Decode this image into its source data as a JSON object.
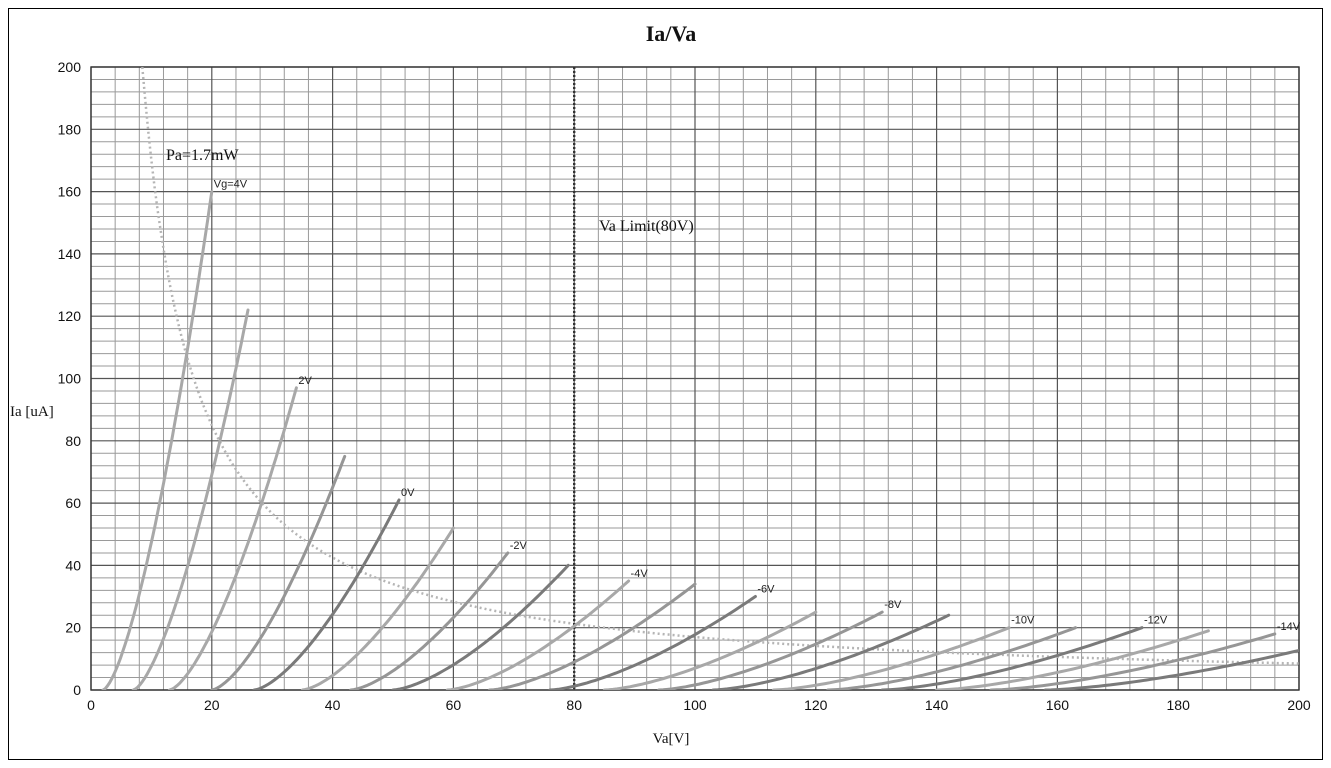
{
  "chart_data": {
    "type": "line",
    "title": "Ia/Va",
    "xlabel": "Va[V]",
    "ylabel": "Ia [uA]",
    "xlim": [
      0,
      200
    ],
    "ylim": [
      0,
      200
    ],
    "x_ticks": [
      "0",
      "20",
      "40",
      "60",
      "80",
      "100",
      "120",
      "140",
      "160",
      "180",
      "200"
    ],
    "y_ticks": [
      "0",
      "20",
      "40",
      "60",
      "80",
      "100",
      "120",
      "140",
      "160",
      "180",
      "200"
    ],
    "grid": true,
    "annotations": {
      "power_limit": "Pa=1.7mW",
      "voltage_limit": "Va Limit(80V)"
    },
    "power_limit_curve": {
      "pa_mw": 1.7,
      "x_range": [
        8.5,
        200
      ]
    },
    "voltage_limit_line": {
      "x": 80
    },
    "series": [
      {
        "label": "Vg=4V",
        "start": 2,
        "end": [
          20,
          160
        ],
        "color": "#a8a8a8"
      },
      {
        "label": "",
        "start": 7,
        "end": [
          26,
          122
        ],
        "color": "#a8a8a8"
      },
      {
        "label": "2V",
        "start": 13,
        "end": [
          34,
          97
        ],
        "color": "#a8a8a8"
      },
      {
        "label": "",
        "start": 20,
        "end": [
          42,
          75
        ],
        "color": "#969696"
      },
      {
        "label": "0V",
        "start": 27,
        "end": [
          51,
          61
        ],
        "color": "#7a7a7a"
      },
      {
        "label": "",
        "start": 35,
        "end": [
          60,
          52
        ],
        "color": "#a8a8a8"
      },
      {
        "label": "-2V",
        "start": 43,
        "end": [
          69,
          44
        ],
        "color": "#969696"
      },
      {
        "label": "",
        "start": 50,
        "end": [
          79,
          40
        ],
        "color": "#7a7a7a"
      },
      {
        "label": "-4V",
        "start": 59,
        "end": [
          89,
          35
        ],
        "color": "#a8a8a8"
      },
      {
        "label": "",
        "start": 66,
        "end": [
          100,
          34
        ],
        "color": "#969696"
      },
      {
        "label": "-6V",
        "start": 76,
        "end": [
          110,
          30
        ],
        "color": "#7a7a7a"
      },
      {
        "label": "",
        "start": 85,
        "end": [
          120,
          25
        ],
        "color": "#a8a8a8"
      },
      {
        "label": "-8V",
        "start": 94,
        "end": [
          131,
          25
        ],
        "color": "#969696"
      },
      {
        "label": "",
        "start": 103,
        "end": [
          142,
          24
        ],
        "color": "#7a7a7a"
      },
      {
        "label": "-10V",
        "start": 113,
        "end": [
          152,
          20
        ],
        "color": "#a8a8a8"
      },
      {
        "label": "",
        "start": 122,
        "end": [
          163,
          20
        ],
        "color": "#969696"
      },
      {
        "label": "-12V",
        "start": 131,
        "end": [
          174,
          20
        ],
        "color": "#7a7a7a"
      },
      {
        "label": "",
        "start": 140,
        "end": [
          185,
          19
        ],
        "color": "#a8a8a8"
      },
      {
        "label": "-14V",
        "start": 149,
        "end": [
          196,
          18
        ],
        "color": "#969696"
      },
      {
        "label": "",
        "start": 158,
        "end": [
          207,
          16
        ],
        "color": "#7a7a7a"
      }
    ]
  }
}
